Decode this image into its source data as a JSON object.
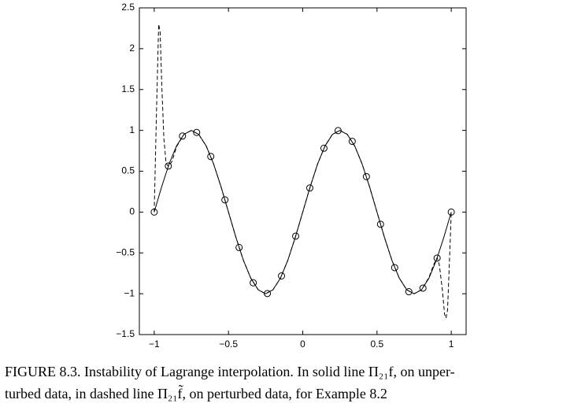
{
  "chart_data": {
    "type": "line",
    "xlim": [
      -1.1,
      1.1
    ],
    "ylim": [
      -1.5,
      2.5
    ],
    "xticks": [
      {
        "value": -1,
        "label": "−1"
      },
      {
        "value": -0.5,
        "label": "−0.5"
      },
      0,
      0.5,
      1
    ],
    "yticks": [
      {
        "value": -1.5,
        "label": "−1.5"
      },
      {
        "value": -1,
        "label": "−1"
      },
      {
        "value": -0.5,
        "label": "−0.5"
      },
      0,
      0.5,
      1,
      1.5,
      2,
      2.5
    ],
    "series": [
      {
        "color": "#000000",
        "style": "solid",
        "x": [
          -1,
          -0.95,
          -0.9,
          -0.85,
          -0.8,
          -0.75,
          -0.7,
          -0.65,
          -0.6,
          -0.55,
          -0.5,
          -0.45,
          -0.4,
          -0.35,
          -0.3,
          -0.25,
          -0.2,
          -0.15,
          -0.1,
          -0.05,
          0,
          0.05,
          0.1,
          0.15,
          0.2,
          0.25,
          0.3,
          0.35,
          0.4,
          0.45,
          0.5,
          0.55,
          0.6,
          0.65,
          0.7,
          0.75,
          0.8,
          0.85,
          0.9,
          0.95,
          1
        ],
        "values": [
          0,
          0.309,
          0.588,
          0.809,
          0.951,
          1,
          0.951,
          0.809,
          0.588,
          0.309,
          0,
          -0.309,
          -0.588,
          -0.809,
          -0.951,
          -1,
          -0.951,
          -0.809,
          -0.588,
          -0.309,
          0,
          0.309,
          0.588,
          0.809,
          0.951,
          1,
          0.951,
          0.809,
          0.588,
          0.309,
          0,
          -0.309,
          -0.588,
          -0.809,
          -0.951,
          -1,
          -0.951,
          -0.809,
          -0.588,
          -0.309,
          0
        ]
      },
      {
        "color": "#000000",
        "style": "dashed",
        "x": [
          -1,
          -0.985,
          -0.97,
          -0.96,
          -0.95,
          -0.935,
          -0.92,
          -0.905,
          -0.88,
          -0.85,
          -0.8,
          -0.75,
          -0.7,
          -0.65,
          -0.6,
          -0.55,
          -0.5,
          -0.45,
          -0.4,
          -0.35,
          -0.3,
          -0.25,
          -0.2,
          -0.15,
          -0.1,
          -0.05,
          0,
          0.05,
          0.1,
          0.15,
          0.2,
          0.25,
          0.3,
          0.35,
          0.4,
          0.45,
          0.5,
          0.55,
          0.6,
          0.65,
          0.7,
          0.75,
          0.8,
          0.85,
          0.88,
          0.905,
          0.92,
          0.94,
          0.955,
          0.965,
          0.975,
          0.99,
          1
        ],
        "values": [
          0,
          1.2,
          2.3,
          2.2,
          1.6,
          0.9,
          0.6,
          0.56,
          0.62,
          0.8,
          0.951,
          1,
          0.951,
          0.809,
          0.588,
          0.309,
          0,
          -0.309,
          -0.588,
          -0.809,
          -0.951,
          -1,
          -0.951,
          -0.809,
          -0.588,
          -0.309,
          0,
          0.309,
          0.588,
          0.809,
          0.951,
          1,
          0.951,
          0.809,
          0.588,
          0.309,
          0,
          -0.309,
          -0.588,
          -0.809,
          -0.951,
          -1,
          -0.951,
          -0.8,
          -0.65,
          -0.56,
          -0.65,
          -0.95,
          -1.25,
          -1.3,
          -1.2,
          -0.5,
          0
        ]
      },
      {
        "color": "#000000",
        "style": "markers",
        "marker": "circle",
        "x": [
          -1,
          -0.9048,
          -0.8095,
          -0.7143,
          -0.619,
          -0.5238,
          -0.4286,
          -0.3333,
          -0.2381,
          -0.1429,
          -0.0476,
          0.0476,
          0.1429,
          0.2381,
          0.3333,
          0.4286,
          0.5238,
          0.619,
          0.7143,
          0.8095,
          0.9048,
          1
        ],
        "values": [
          0,
          0.5633,
          0.9309,
          0.9749,
          0.6802,
          0.149,
          -0.4339,
          -0.866,
          -0.9972,
          -0.7818,
          -0.2948,
          0.2948,
          0.7818,
          0.9972,
          0.866,
          0.4339,
          -0.149,
          -0.6802,
          -0.9749,
          -0.9309,
          -0.5633,
          0
        ]
      }
    ]
  },
  "caption": {
    "line1": "FIGURE 8.3. Instability of Lagrange interpolation. In solid line Π₂₁f, on unper-",
    "line2": "turbed data, in dashed line Π₂₁f̃, on perturbed data, for Example 8.2"
  }
}
